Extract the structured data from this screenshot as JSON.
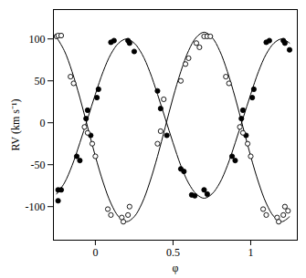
{
  "chart_data": {
    "type": "scatter",
    "x_label": "φ",
    "y_label": "RV (km s⁻¹)",
    "xlim": [
      -0.27,
      1.3
    ],
    "ylim": [
      -140,
      135
    ],
    "xticks": [
      0,
      0.5,
      1
    ],
    "yticks": [
      -100,
      -50,
      0,
      50,
      100
    ],
    "grid": false,
    "x": [
      -0.25,
      -0.2,
      -0.15,
      -0.1,
      -0.05,
      0,
      0.05,
      0.1,
      0.15,
      0.2,
      0.25,
      0.3,
      0.35,
      0.4,
      0.45,
      0.5,
      0.55,
      0.6,
      0.65,
      0.7,
      0.75,
      0.8,
      0.85,
      0.9,
      0.95,
      1,
      1.05,
      1.1,
      1.15,
      1.2,
      1.25
    ],
    "series": [
      {
        "color": "#000000",
        "marker": "filled circle",
        "line_style": "solid",
        "values": [
          -85,
          -72,
          -51,
          -24,
          5,
          34,
          61,
          82,
          95,
          100,
          95,
          82,
          61,
          34,
          5,
          -24,
          -51,
          -72,
          -85,
          -90,
          -85,
          -72,
          -51,
          -24,
          5,
          34,
          61,
          82,
          95,
          100,
          95
        ],
        "points_x": [
          -0.24,
          -0.24,
          -0.22,
          -0.12,
          -0.1,
          -0.06,
          -0.05,
          -0.03,
          0.01,
          0.02,
          0.1,
          0.12,
          0.21,
          0.22,
          0.25,
          0.4,
          0.42,
          0.46,
          0.55,
          0.57,
          0.62,
          0.64,
          0.7,
          0.72,
          0.88,
          0.9,
          0.94,
          0.95,
          0.97,
          1.01,
          1.02,
          1.1,
          1.12,
          1.21,
          1.22,
          1.25
        ],
        "points_y": [
          -80,
          -93,
          -80,
          -40,
          -45,
          5,
          15,
          -15,
          30,
          40,
          96,
          98,
          98,
          95,
          85,
          38,
          17,
          -15,
          -55,
          -58,
          -86,
          -87,
          -80,
          -85,
          -40,
          -45,
          5,
          15,
          -15,
          30,
          40,
          96,
          98,
          98,
          95,
          87
        ]
      },
      {
        "color": "#000000",
        "marker": "open circle",
        "line_style": "solid",
        "values": [
          102,
          86,
          61,
          30,
          -5,
          -40,
          -71,
          -96,
          -112,
          -118,
          -112,
          -96,
          -71,
          -40,
          -5,
          30,
          61,
          86,
          102,
          108,
          102,
          86,
          61,
          30,
          -5,
          -40,
          -71,
          -96,
          -112,
          -118,
          -112
        ],
        "points_x": [
          -0.25,
          -0.24,
          -0.22,
          -0.16,
          -0.14,
          -0.07,
          -0.05,
          -0.02,
          0,
          0.08,
          0.1,
          0.17,
          0.18,
          0.21,
          0.22,
          0.4,
          0.42,
          0.44,
          0.55,
          0.58,
          0.6,
          0.65,
          0.67,
          0.7,
          0.72,
          0.74,
          0.84,
          0.86,
          0.93,
          0.95,
          0.98,
          1,
          1.08,
          1.1,
          1.17,
          1.18,
          1.21,
          1.22,
          1.24
        ],
        "points_y": [
          103,
          104,
          104,
          55,
          47,
          -5,
          -12,
          -25,
          -40,
          -103,
          -110,
          -113,
          -118,
          -110,
          -100,
          -25,
          -10,
          28,
          50,
          70,
          77,
          95,
          90,
          103,
          103,
          103,
          55,
          47,
          -5,
          -12,
          -25,
          -40,
          -103,
          -110,
          -113,
          -118,
          -110,
          -100,
          -105
        ]
      }
    ]
  }
}
